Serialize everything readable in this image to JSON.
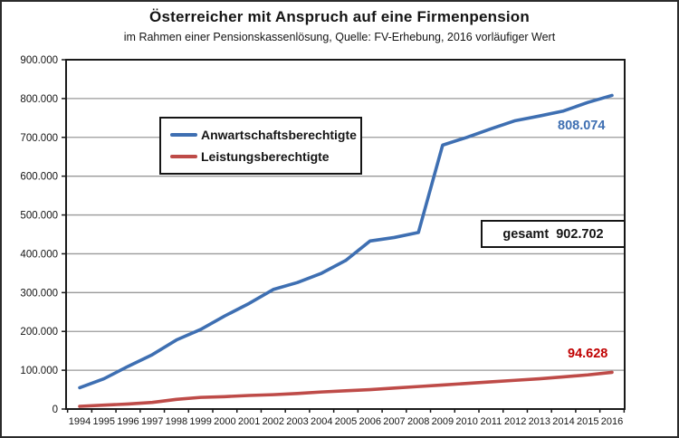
{
  "header": {
    "title": "Österreicher mit Anspruch auf eine Firmenpension",
    "subtitle": "im Rahmen einer Pensionskassenlösung, Quelle: FV-Erhebung, 2016 vorläufiger Wert"
  },
  "legend": {
    "items": [
      {
        "label": "Anwartschaftsberechtigte",
        "color": "#3E6FB2"
      },
      {
        "label": "Leistungsberechtigte",
        "color": "#BE4B48"
      }
    ]
  },
  "annotations": {
    "anwartschaft_end_value": "808.074",
    "leistung_end_value": "94.628",
    "total_label": "gesamt  902.702"
  },
  "colors": {
    "blue_series": "#3E6FB2",
    "red_series": "#BE4B48",
    "blue_annotation_text": "#3E6FB2",
    "red_annotation_text": "#C00000",
    "gridline": "#999999",
    "axis_border": "#1a1a1a",
    "text": "#151515"
  },
  "chart_data": {
    "type": "line",
    "title": "Österreicher mit Anspruch auf eine Firmenpension",
    "subtitle": "im Rahmen einer Pensionskassenlösung, Quelle: FV-Erhebung, 2016 vorläufiger Wert",
    "x": [
      1994,
      1995,
      1996,
      1997,
      1998,
      1999,
      2000,
      2001,
      2002,
      2003,
      2004,
      2005,
      2006,
      2007,
      2008,
      2009,
      2010,
      2011,
      2012,
      2013,
      2014,
      2015,
      2016
    ],
    "series": [
      {
        "name": "Anwartschaftsberechtigte",
        "color": "#3E6FB2",
        "values": [
          55000,
          78000,
          110000,
          140000,
          178000,
          205000,
          240000,
          272000,
          308000,
          326000,
          350000,
          383000,
          433000,
          442000,
          455000,
          680000,
          700000,
          722000,
          743000,
          755000,
          768000,
          790000,
          808074
        ]
      },
      {
        "name": "Leistungsberechtigte",
        "color": "#BE4B48",
        "values": [
          7000,
          10000,
          13000,
          17000,
          25000,
          30000,
          32000,
          35000,
          37000,
          40000,
          44000,
          47000,
          50000,
          54000,
          58000,
          62000,
          66000,
          70000,
          74000,
          78000,
          83000,
          88000,
          94628
        ]
      }
    ],
    "ylim": [
      0,
      900000
    ],
    "y_tick_step": 100000,
    "y_tick_labels": [
      "0",
      "100.000",
      "200.000",
      "300.000",
      "400.000",
      "500.000",
      "600.000",
      "700.000",
      "800.000",
      "900.000"
    ],
    "grid": true,
    "legend_position": "inside-top-left",
    "final_values_annotated": {
      "Anwartschaftsberechtigte": "808.074",
      "Leistungsberechtigte": "94.628",
      "gesamt": "902.702"
    }
  }
}
